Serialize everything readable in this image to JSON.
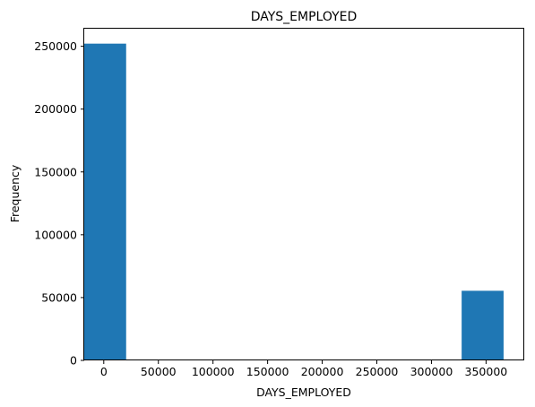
{
  "chart_data": {
    "type": "bar",
    "title": "DAYS_EMPLOYED",
    "xlabel": "DAYS_EMPLOYED",
    "ylabel": "Frequency",
    "xlim": [
      -17880,
      384960
    ],
    "ylim": [
      0,
      264000
    ],
    "xticks": [
      0,
      50000,
      100000,
      150000,
      200000,
      250000,
      300000,
      350000
    ],
    "xtick_labels": [
      "0",
      "50000",
      "100000",
      "150000",
      "200000",
      "250000",
      "300000",
      "350000"
    ],
    "yticks": [
      0,
      50000,
      100000,
      150000,
      200000,
      250000
    ],
    "ytick_labels": [
      "0",
      "50000",
      "100000",
      "150000",
      "200000",
      "250000"
    ],
    "bins": [
      {
        "x0": -17912,
        "x1": 20483,
        "value": 252100
      },
      {
        "x0": 20483,
        "x1": 58878,
        "value": 0
      },
      {
        "x0": 58878,
        "x1": 97273,
        "value": 0
      },
      {
        "x0": 97273,
        "x1": 135668,
        "value": 0
      },
      {
        "x0": 135668,
        "x1": 174063,
        "value": 0
      },
      {
        "x0": 174063,
        "x1": 212458,
        "value": 0
      },
      {
        "x0": 212458,
        "x1": 250853,
        "value": 0
      },
      {
        "x0": 250853,
        "x1": 289248,
        "value": 0
      },
      {
        "x0": 289248,
        "x1": 327643,
        "value": 0
      },
      {
        "x0": 327643,
        "x1": 366038,
        "value": 55400
      }
    ],
    "bar_color": "#1f77b4",
    "grid": false,
    "legend": "none"
  }
}
